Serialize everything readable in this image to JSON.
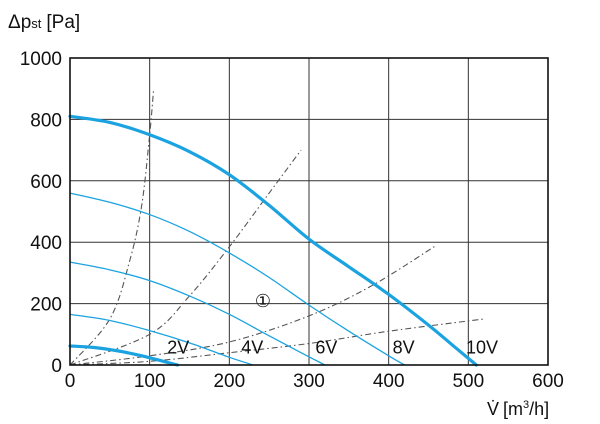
{
  "chart_data": {
    "type": "line",
    "ylabel_symbol": "Δp",
    "ylabel_subscript": "st",
    "ylabel_unit": "[Pa]",
    "xlabel_symbol": "V̇",
    "xlabel_unit_pre": "[m",
    "xlabel_unit_sup": "3",
    "xlabel_unit_post": "/h]",
    "xlim": [
      0,
      600
    ],
    "ylim": [
      0,
      1000
    ],
    "x_ticks": [
      "0",
      "100",
      "200",
      "300",
      "400",
      "500",
      "600"
    ],
    "y_ticks": [
      "0",
      "200",
      "400",
      "600",
      "800",
      "1000"
    ],
    "x_tick_values": [
      0,
      100,
      200,
      300,
      400,
      500,
      600
    ],
    "y_tick_values": [
      0,
      200,
      400,
      600,
      800,
      1000
    ],
    "grid": true,
    "colors": {
      "thick": "#1aa3e0",
      "thin": "#1aa3e0",
      "dashed": "#555555"
    },
    "annotation": "①",
    "annotation_pos": {
      "x": 232,
      "y": 215
    },
    "series": [
      {
        "label": "10V",
        "style": "thick",
        "x": [
          0,
          50,
          100,
          150,
          200,
          250,
          300,
          350,
          400,
          450,
          480,
          510
        ],
        "y": [
          810,
          790,
          750,
          695,
          620,
          520,
          410,
          320,
          230,
          130,
          65,
          0
        ]
      },
      {
        "label": "8V",
        "style": "thin",
        "x": [
          0,
          50,
          100,
          150,
          200,
          250,
          300,
          350,
          400,
          420
        ],
        "y": [
          560,
          530,
          490,
          435,
          365,
          285,
          195,
          110,
          30,
          0
        ]
      },
      {
        "label": "6V",
        "style": "thin",
        "x": [
          0,
          50,
          100,
          150,
          200,
          250,
          290,
          320
        ],
        "y": [
          335,
          310,
          275,
          225,
          165,
          95,
          40,
          0
        ]
      },
      {
        "label": "4V",
        "style": "thin",
        "x": [
          0,
          50,
          100,
          150,
          200,
          230
        ],
        "y": [
          165,
          145,
          112,
          72,
          25,
          0
        ]
      },
      {
        "label": "2V",
        "style": "thick",
        "x": [
          0,
          30,
          60,
          90,
          120,
          135
        ],
        "y": [
          62,
          57,
          46,
          30,
          10,
          0
        ]
      }
    ],
    "system_curves": [
      {
        "x": [
          0,
          50,
          75,
          90,
          100,
          105
        ],
        "y": [
          0,
          150,
          340,
          520,
          750,
          900
        ]
      },
      {
        "x": [
          0,
          100,
          150,
          200,
          250,
          290
        ],
        "y": [
          0,
          100,
          225,
          385,
          560,
          700
        ]
      },
      {
        "x": [
          0,
          100,
          200,
          300,
          380,
          460
        ],
        "y": [
          0,
          30,
          75,
          160,
          260,
          390
        ]
      },
      {
        "x": [
          0,
          100,
          200,
          300,
          400,
          520
        ],
        "y": [
          0,
          12,
          40,
          70,
          110,
          150
        ]
      }
    ],
    "curve_label_points": [
      {
        "label": "2V",
        "x": 122,
        "y": 35
      },
      {
        "label": "4V",
        "x": 215,
        "y": 35
      },
      {
        "label": "6V",
        "x": 308,
        "y": 35
      },
      {
        "label": "8V",
        "x": 405,
        "y": 35
      },
      {
        "label": "10V",
        "x": 497,
        "y": 35
      }
    ]
  }
}
